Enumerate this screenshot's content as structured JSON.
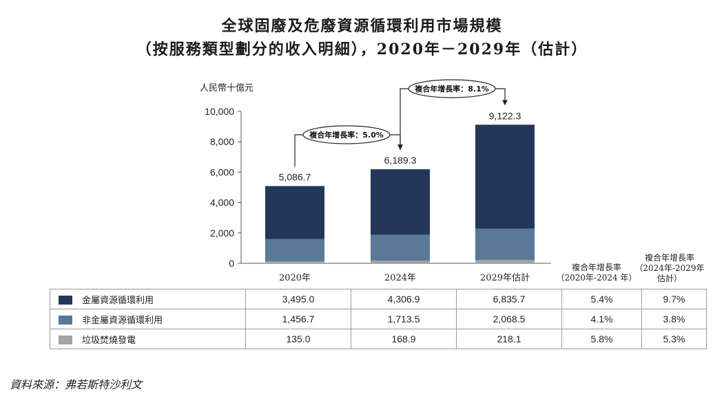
{
  "title_line1": "全球固廢及危廢資源循環利用市場規模",
  "title_line2": "（按服務類型劃分的收入明細），2020年－2029年（估計）",
  "source": "資料來源：弗若斯特沙利文",
  "colors": {
    "metal": "#243659",
    "nonmetal": "#5a7897",
    "incineration": "#a3a3a3"
  },
  "chart_data": {
    "type": "bar",
    "stacked": true,
    "ylabel": "人民幣十億元",
    "ylim": [
      0,
      10000
    ],
    "yticks": [
      "0",
      "2,000",
      "4,000",
      "6,000",
      "8,000",
      "10,000"
    ],
    "categories": [
      "2020年",
      "2024年",
      "2029年估計"
    ],
    "totals": [
      "5,086.7",
      "6,189.3",
      "9,122.3"
    ],
    "series": [
      {
        "name": "垃圾焚燒發電",
        "values": [
          135.0,
          168.9,
          218.1
        ]
      },
      {
        "name": "非金屬資源循環利用",
        "values": [
          1456.7,
          1713.5,
          2068.5
        ]
      },
      {
        "name": "金屬資源循環利用",
        "values": [
          3495.0,
          4306.9,
          6835.7
        ]
      }
    ],
    "cagr_annotations": [
      {
        "label": "複合年增長率：5.0%",
        "from": "2020年",
        "to": "2024年"
      },
      {
        "label": "複合年增長率：8.1%",
        "from": "2024年",
        "to": "2029年估計"
      }
    ]
  },
  "table": {
    "header_cagr1": [
      "複合年增長率",
      "（2020年-2024 年）"
    ],
    "header_cagr2": [
      "複合年增長率",
      "（2024年-2029年",
      "估計）"
    ],
    "rows": [
      {
        "name": "金屬資源循環利用",
        "color_key": "metal",
        "v2020": "3,495.0",
        "v2024": "4,306.9",
        "v2029": "6,835.7",
        "cagr1": "5.4%",
        "cagr2": "9.7%"
      },
      {
        "name": "非金屬資源循環利用",
        "color_key": "nonmetal",
        "v2020": "1,456.7",
        "v2024": "1,713.5",
        "v2029": "2,068.5",
        "cagr1": "4.1%",
        "cagr2": "3.8%"
      },
      {
        "name": "垃圾焚燒發電",
        "color_key": "incineration",
        "v2020": "135.0",
        "v2024": "168.9",
        "v2029": "218.1",
        "cagr1": "5.8%",
        "cagr2": "5.3%"
      }
    ]
  }
}
